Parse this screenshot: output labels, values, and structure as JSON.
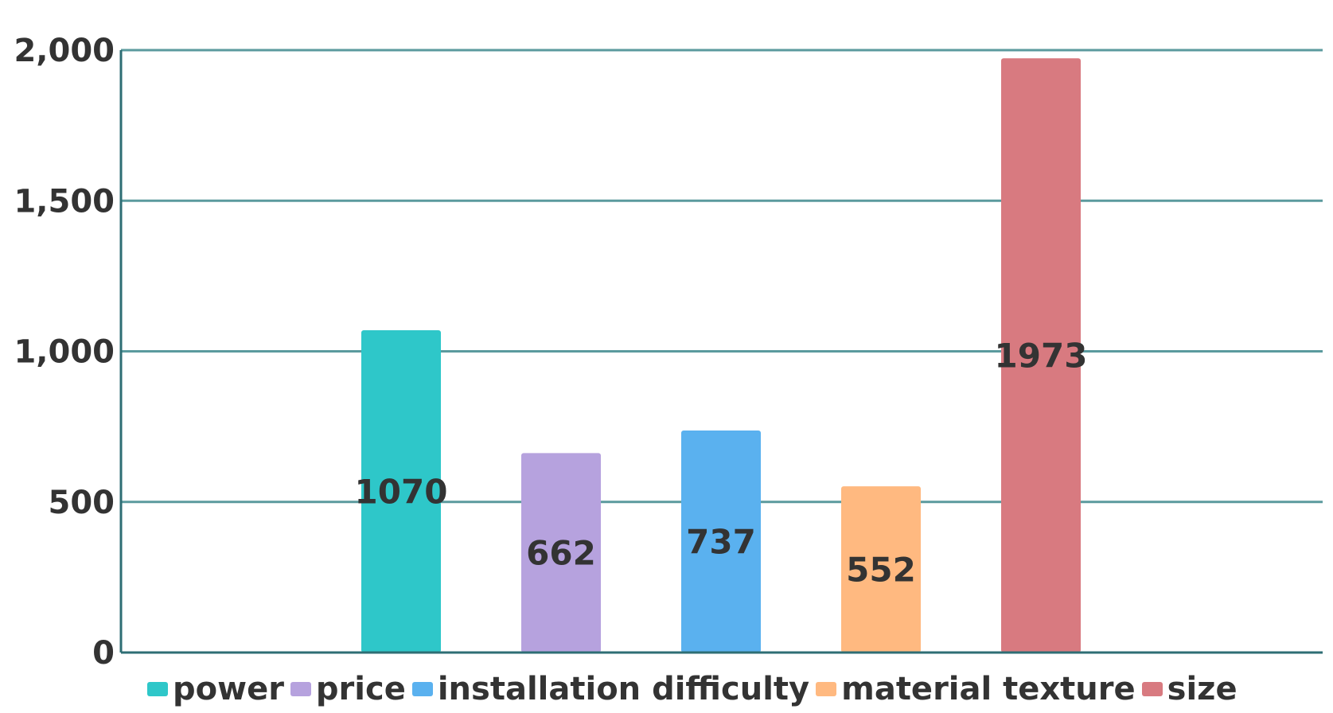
{
  "chart_data": {
    "type": "bar",
    "categories": [
      "power",
      "price",
      "installation difficulty",
      "material texture",
      "size"
    ],
    "values": [
      1070,
      662,
      737,
      552,
      1973
    ],
    "colors": [
      "#2ec7c9",
      "#b6a2de",
      "#5ab1ef",
      "#ffb980",
      "#d87a80"
    ],
    "data_labels": [
      "1070",
      "662",
      "737",
      "552",
      "1973"
    ],
    "yticks": [
      0,
      500,
      1000,
      1500,
      2000
    ],
    "ytick_labels": [
      "0",
      "500",
      "1,000",
      "1,500",
      "2,000"
    ],
    "ylim": [
      0,
      2000
    ],
    "grid": true,
    "legend_position": "bottom",
    "title": "",
    "xlabel": "",
    "ylabel": ""
  },
  "legend": {
    "items": [
      {
        "label": "power",
        "color": "#2ec7c9"
      },
      {
        "label": "price",
        "color": "#b6a2de"
      },
      {
        "label": "installation difficulty",
        "color": "#5ab1ef"
      },
      {
        "label": "material texture",
        "color": "#ffb980"
      },
      {
        "label": "size",
        "color": "#d87a80"
      }
    ]
  }
}
